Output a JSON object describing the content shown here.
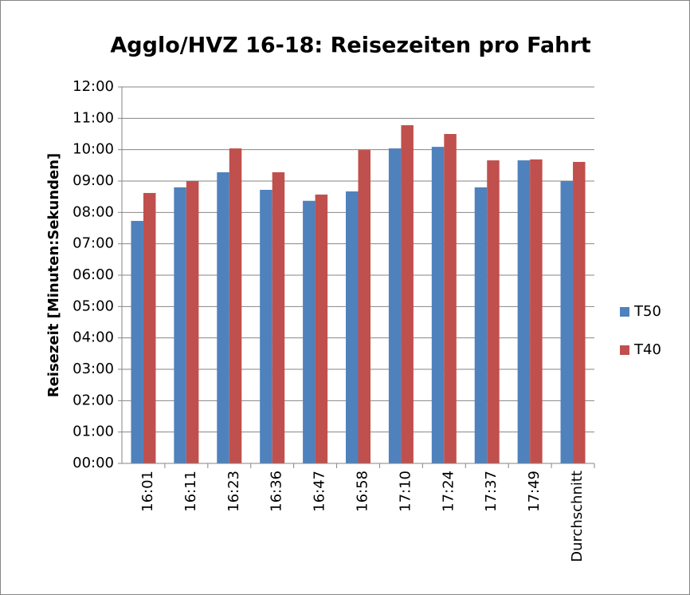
{
  "chart_data": {
    "type": "bar",
    "title": "Agglo/HVZ 16-18: Reisezeiten pro Fahrt",
    "y_label": "Reisezeit [Minuten:Sekunden]",
    "categories": [
      "16:01",
      "16:11",
      "16:23",
      "16:36",
      "16:47",
      "16:58",
      "17:10",
      "17:24",
      "17:37",
      "17:49",
      "Durchschnitt"
    ],
    "series": [
      {
        "name": "T50",
        "color": "#4f81bd",
        "values": [
          7.73,
          8.8,
          9.28,
          8.72,
          8.37,
          8.67,
          10.04,
          10.09,
          8.8,
          9.66,
          9.0
        ]
      },
      {
        "name": "T40",
        "color": "#c0504d",
        "values": [
          8.62,
          9.0,
          10.04,
          9.28,
          8.57,
          9.99,
          10.78,
          10.5,
          9.66,
          9.69,
          9.61
        ]
      }
    ],
    "ylim": [
      0,
      12
    ],
    "yticks": [
      {
        "value": 0,
        "label": "00:00"
      },
      {
        "value": 1,
        "label": "01:00"
      },
      {
        "value": 2,
        "label": "02:00"
      },
      {
        "value": 3,
        "label": "03:00"
      },
      {
        "value": 4,
        "label": "04:00"
      },
      {
        "value": 5,
        "label": "05:00"
      },
      {
        "value": 6,
        "label": "06:00"
      },
      {
        "value": 7,
        "label": "07:00"
      },
      {
        "value": 8,
        "label": "08:00"
      },
      {
        "value": 9,
        "label": "09:00"
      },
      {
        "value": 10,
        "label": "10:00"
      },
      {
        "value": 11,
        "label": "11:00"
      },
      {
        "value": 12,
        "label": "12:00"
      }
    ],
    "grid": true,
    "legend": "right"
  }
}
